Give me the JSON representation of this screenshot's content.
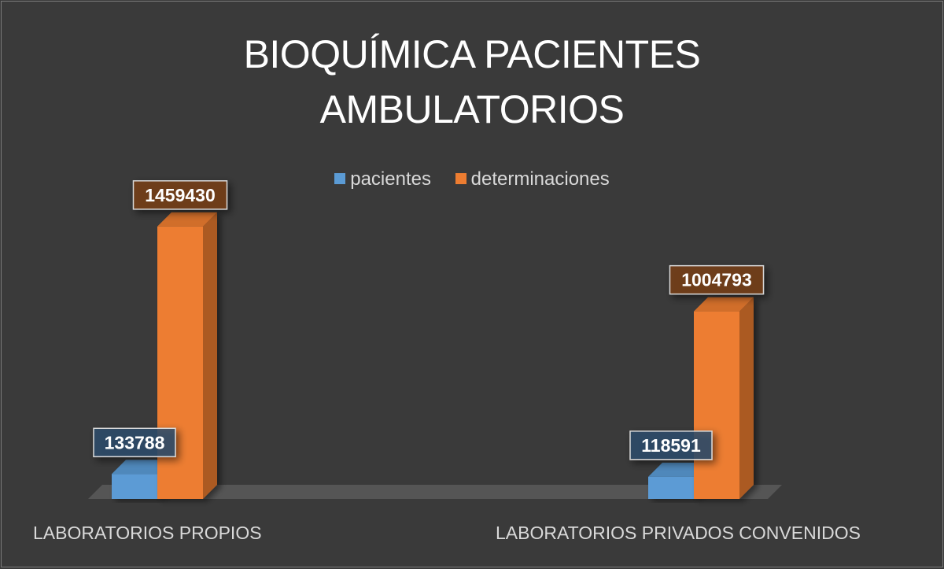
{
  "chart_data": {
    "type": "bar",
    "title_lines": [
      "BIOQUÍMICA PACIENTES",
      "AMBULATORIOS"
    ],
    "categories": [
      "LABORATORIOS PROPIOS",
      "LABORATORIOS PRIVADOS CONVENIDOS"
    ],
    "series": [
      {
        "name": "pacientes",
        "values": [
          133788,
          118591
        ],
        "color": "#5b9bd5"
      },
      {
        "name": "determinaciones",
        "values": [
          1459430,
          1004793
        ],
        "color": "#ed7d31"
      }
    ],
    "ylim": [
      0,
      1800000
    ],
    "legend_position": "top",
    "grid": false,
    "style": "3d-column"
  }
}
